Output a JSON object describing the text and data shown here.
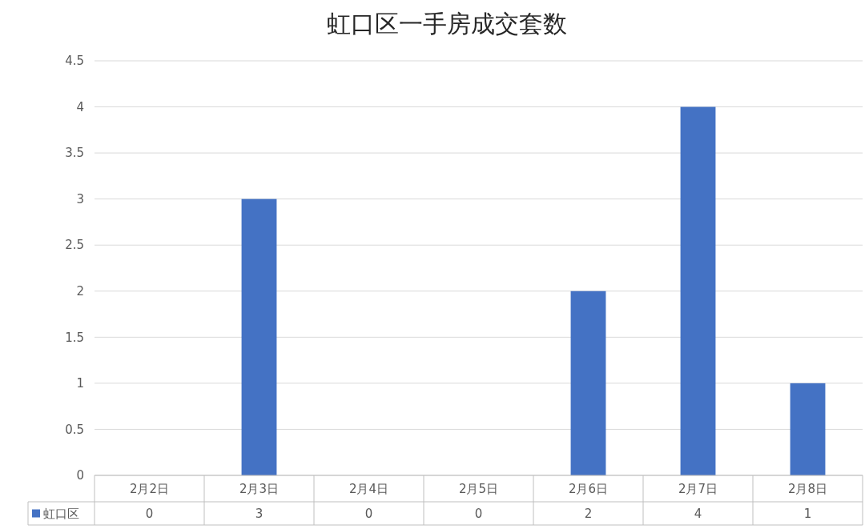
{
  "chart_data": {
    "type": "bar",
    "title": "虹口区一手房成交套数",
    "categories": [
      "2月2日",
      "2月3日",
      "2月4日",
      "2月5日",
      "2月6日",
      "2月7日",
      "2月8日"
    ],
    "series": [
      {
        "name": "虹口区",
        "color": "#4472c4",
        "values": [
          0,
          3,
          0,
          0,
          2,
          4,
          1
        ]
      }
    ],
    "ylim": [
      0,
      4.5
    ],
    "yticks": [
      0,
      0.5,
      1,
      1.5,
      2,
      2.5,
      3,
      3.5,
      4,
      4.5
    ],
    "grid": "y",
    "data_labels": true,
    "legend": "bottom"
  }
}
